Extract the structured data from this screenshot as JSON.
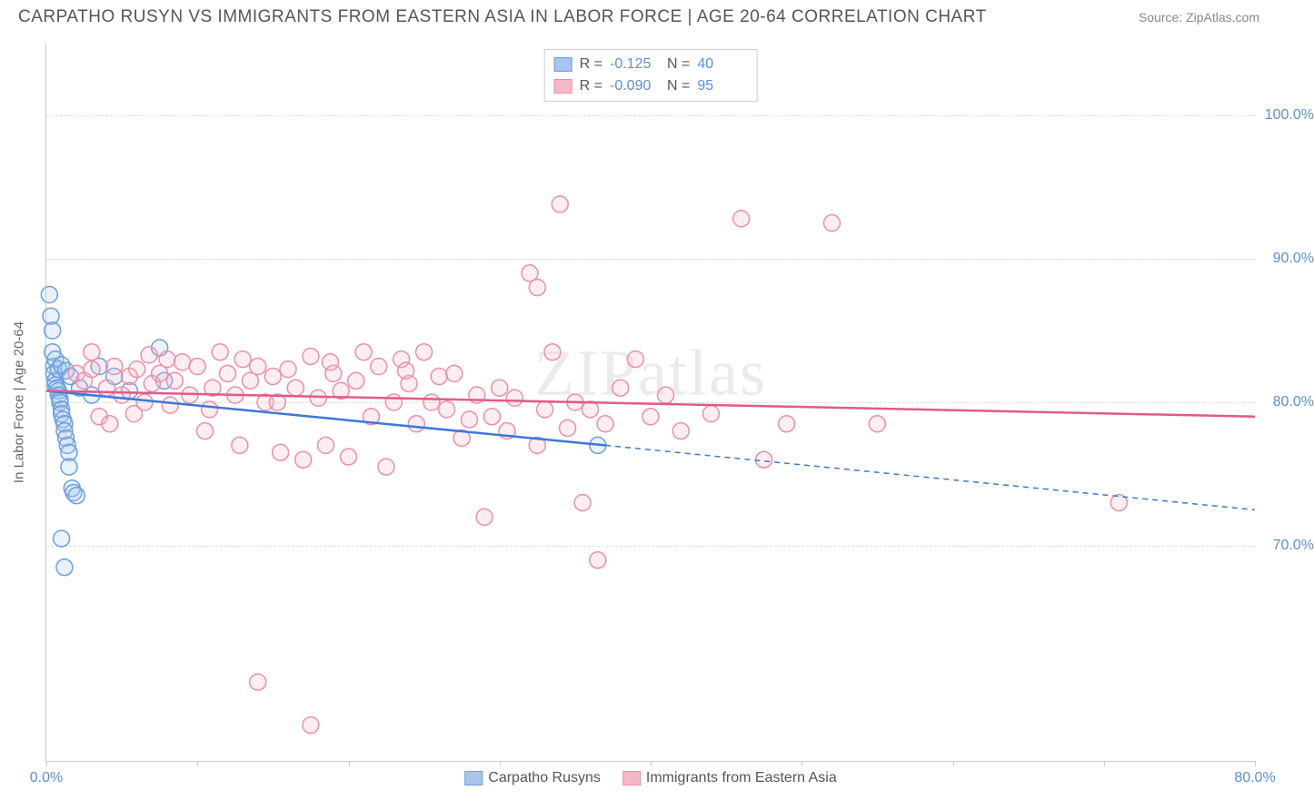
{
  "title": "CARPATHO RUSYN VS IMMIGRANTS FROM EASTERN ASIA IN LABOR FORCE | AGE 20-64 CORRELATION CHART",
  "source": "Source: ZipAtlas.com",
  "watermark": "ZIPatlas",
  "y_axis_label": "In Labor Force | Age 20-64",
  "chart": {
    "type": "scatter",
    "xlim": [
      0,
      80
    ],
    "ylim": [
      55,
      105
    ],
    "x_ticks": [
      0,
      10,
      20,
      30,
      40,
      50,
      60,
      70,
      80
    ],
    "x_tick_labels": {
      "0": "0.0%",
      "80": "80.0%"
    },
    "y_ticks": [
      70,
      80,
      90,
      100
    ],
    "y_tick_labels": {
      "70": "70.0%",
      "80": "80.0%",
      "90": "90.0%",
      "100": "100.0%"
    },
    "grid_color": "#dddddd",
    "background_color": "#ffffff",
    "axis_color": "#cccccc",
    "tick_label_color": "#5b8fd6",
    "marker_radius": 9,
    "marker_stroke_width": 1.5,
    "marker_fill_opacity": 0.25,
    "trend_line_width": 2.5
  },
  "series": [
    {
      "id": "carpatho",
      "label": "Carpatho Rusyns",
      "color_fill": "#a8c6ec",
      "color_stroke": "#6b9fe0",
      "trend_color": "#3b78d8",
      "R": "-0.125",
      "N": "40",
      "trend": {
        "x0": 0,
        "y0": 80.8,
        "x1": 37,
        "y1": 77.0,
        "x_extend": 80,
        "y_extend": 72.5,
        "dash_after_x": 37
      },
      "points": [
        [
          0.2,
          87.5
        ],
        [
          0.3,
          86.0
        ],
        [
          0.4,
          85.0
        ],
        [
          0.5,
          82.5
        ],
        [
          0.5,
          82.0
        ],
        [
          0.6,
          81.5
        ],
        [
          0.6,
          81.2
        ],
        [
          0.7,
          81.0
        ],
        [
          0.8,
          80.8
        ],
        [
          0.8,
          80.5
        ],
        [
          0.9,
          80.2
        ],
        [
          0.9,
          80.0
        ],
        [
          1.0,
          79.5
        ],
        [
          1.0,
          79.2
        ],
        [
          1.1,
          78.8
        ],
        [
          1.2,
          78.5
        ],
        [
          1.2,
          78.0
        ],
        [
          1.3,
          77.5
        ],
        [
          1.4,
          77.0
        ],
        [
          1.5,
          76.5
        ],
        [
          1.5,
          75.5
        ],
        [
          1.7,
          74.0
        ],
        [
          1.8,
          73.7
        ],
        [
          2.0,
          73.5
        ],
        [
          0.4,
          83.5
        ],
        [
          0.6,
          83.0
        ],
        [
          0.8,
          82.3
        ],
        [
          1.0,
          82.6
        ],
        [
          1.3,
          82.2
        ],
        [
          1.6,
          81.8
        ],
        [
          2.2,
          81.0
        ],
        [
          3.0,
          80.5
        ],
        [
          1.0,
          70.5
        ],
        [
          1.2,
          68.5
        ],
        [
          7.5,
          83.8
        ],
        [
          7.8,
          81.5
        ],
        [
          3.5,
          82.5
        ],
        [
          4.5,
          81.8
        ],
        [
          5.5,
          80.8
        ],
        [
          36.5,
          77.0
        ]
      ]
    },
    {
      "id": "eastern_asia",
      "label": "Immigrants from Eastern Asia",
      "color_fill": "#f5b8c8",
      "color_stroke": "#ec8fa8",
      "trend_color": "#e05a8a",
      "R": "-0.090",
      "N": "95",
      "trend": {
        "x0": 0,
        "y0": 80.8,
        "x1": 80,
        "y1": 79.0,
        "dash_after_x": null
      },
      "points": [
        [
          2.0,
          82.0
        ],
        [
          2.5,
          81.5
        ],
        [
          3.0,
          82.3
        ],
        [
          3.5,
          79.0
        ],
        [
          4.0,
          81.0
        ],
        [
          4.5,
          82.5
        ],
        [
          5.0,
          80.5
        ],
        [
          5.5,
          81.8
        ],
        [
          6.0,
          82.3
        ],
        [
          6.5,
          80.0
        ],
        [
          7.0,
          81.3
        ],
        [
          7.5,
          82.0
        ],
        [
          8.0,
          83.0
        ],
        [
          8.5,
          81.5
        ],
        [
          9.0,
          82.8
        ],
        [
          9.5,
          80.5
        ],
        [
          10.0,
          82.5
        ],
        [
          10.5,
          78.0
        ],
        [
          11.0,
          81.0
        ],
        [
          11.5,
          83.5
        ],
        [
          12.0,
          82.0
        ],
        [
          12.5,
          80.5
        ],
        [
          13.0,
          83.0
        ],
        [
          13.5,
          81.5
        ],
        [
          14.0,
          82.5
        ],
        [
          14.5,
          80.0
        ],
        [
          15.0,
          81.8
        ],
        [
          15.5,
          76.5
        ],
        [
          16.0,
          82.3
        ],
        [
          16.5,
          81.0
        ],
        [
          17.0,
          76.0
        ],
        [
          17.5,
          83.2
        ],
        [
          18.0,
          80.3
        ],
        [
          18.5,
          77.0
        ],
        [
          19.0,
          82.0
        ],
        [
          19.5,
          80.8
        ],
        [
          20.0,
          76.2
        ],
        [
          20.5,
          81.5
        ],
        [
          21.0,
          83.5
        ],
        [
          21.5,
          79.0
        ],
        [
          22.0,
          82.5
        ],
        [
          22.5,
          75.5
        ],
        [
          23.0,
          80.0
        ],
        [
          23.5,
          83.0
        ],
        [
          24.0,
          81.3
        ],
        [
          24.5,
          78.5
        ],
        [
          25.0,
          83.5
        ],
        [
          25.5,
          80.0
        ],
        [
          26.0,
          81.8
        ],
        [
          26.5,
          79.5
        ],
        [
          27.0,
          82.0
        ],
        [
          27.5,
          77.5
        ],
        [
          28.0,
          78.8
        ],
        [
          28.5,
          80.5
        ],
        [
          29.0,
          72.0
        ],
        [
          29.5,
          79.0
        ],
        [
          30.0,
          81.0
        ],
        [
          30.5,
          78.0
        ],
        [
          31.0,
          80.3
        ],
        [
          32.0,
          89.0
        ],
        [
          32.5,
          88.0
        ],
        [
          33.0,
          79.5
        ],
        [
          33.5,
          83.5
        ],
        [
          34.0,
          93.8
        ],
        [
          34.5,
          78.2
        ],
        [
          35.0,
          80.0
        ],
        [
          35.5,
          73.0
        ],
        [
          36.0,
          79.5
        ],
        [
          36.5,
          69.0
        ],
        [
          37.0,
          78.5
        ],
        [
          38.0,
          81.0
        ],
        [
          39.0,
          83.0
        ],
        [
          40.0,
          79.0
        ],
        [
          41.0,
          80.5
        ],
        [
          42.0,
          78.0
        ],
        [
          44.0,
          79.2
        ],
        [
          46.0,
          92.8
        ],
        [
          47.5,
          76.0
        ],
        [
          49.0,
          78.5
        ],
        [
          52.0,
          92.5
        ],
        [
          55.0,
          78.5
        ],
        [
          71.0,
          73.0
        ],
        [
          17.5,
          57.5
        ],
        [
          14.0,
          60.5
        ],
        [
          3.0,
          83.5
        ],
        [
          4.2,
          78.5
        ],
        [
          5.8,
          79.2
        ],
        [
          6.8,
          83.3
        ],
        [
          8.2,
          79.8
        ],
        [
          10.8,
          79.5
        ],
        [
          12.8,
          77.0
        ],
        [
          15.3,
          80.0
        ],
        [
          18.8,
          82.8
        ],
        [
          23.8,
          82.2
        ],
        [
          32.5,
          77.0
        ]
      ]
    }
  ],
  "legend_top": {
    "rows": [
      {
        "series": "carpatho",
        "R_label": "R =",
        "N_label": "N ="
      },
      {
        "series": "eastern_asia",
        "R_label": "R =",
        "N_label": "N ="
      }
    ]
  }
}
